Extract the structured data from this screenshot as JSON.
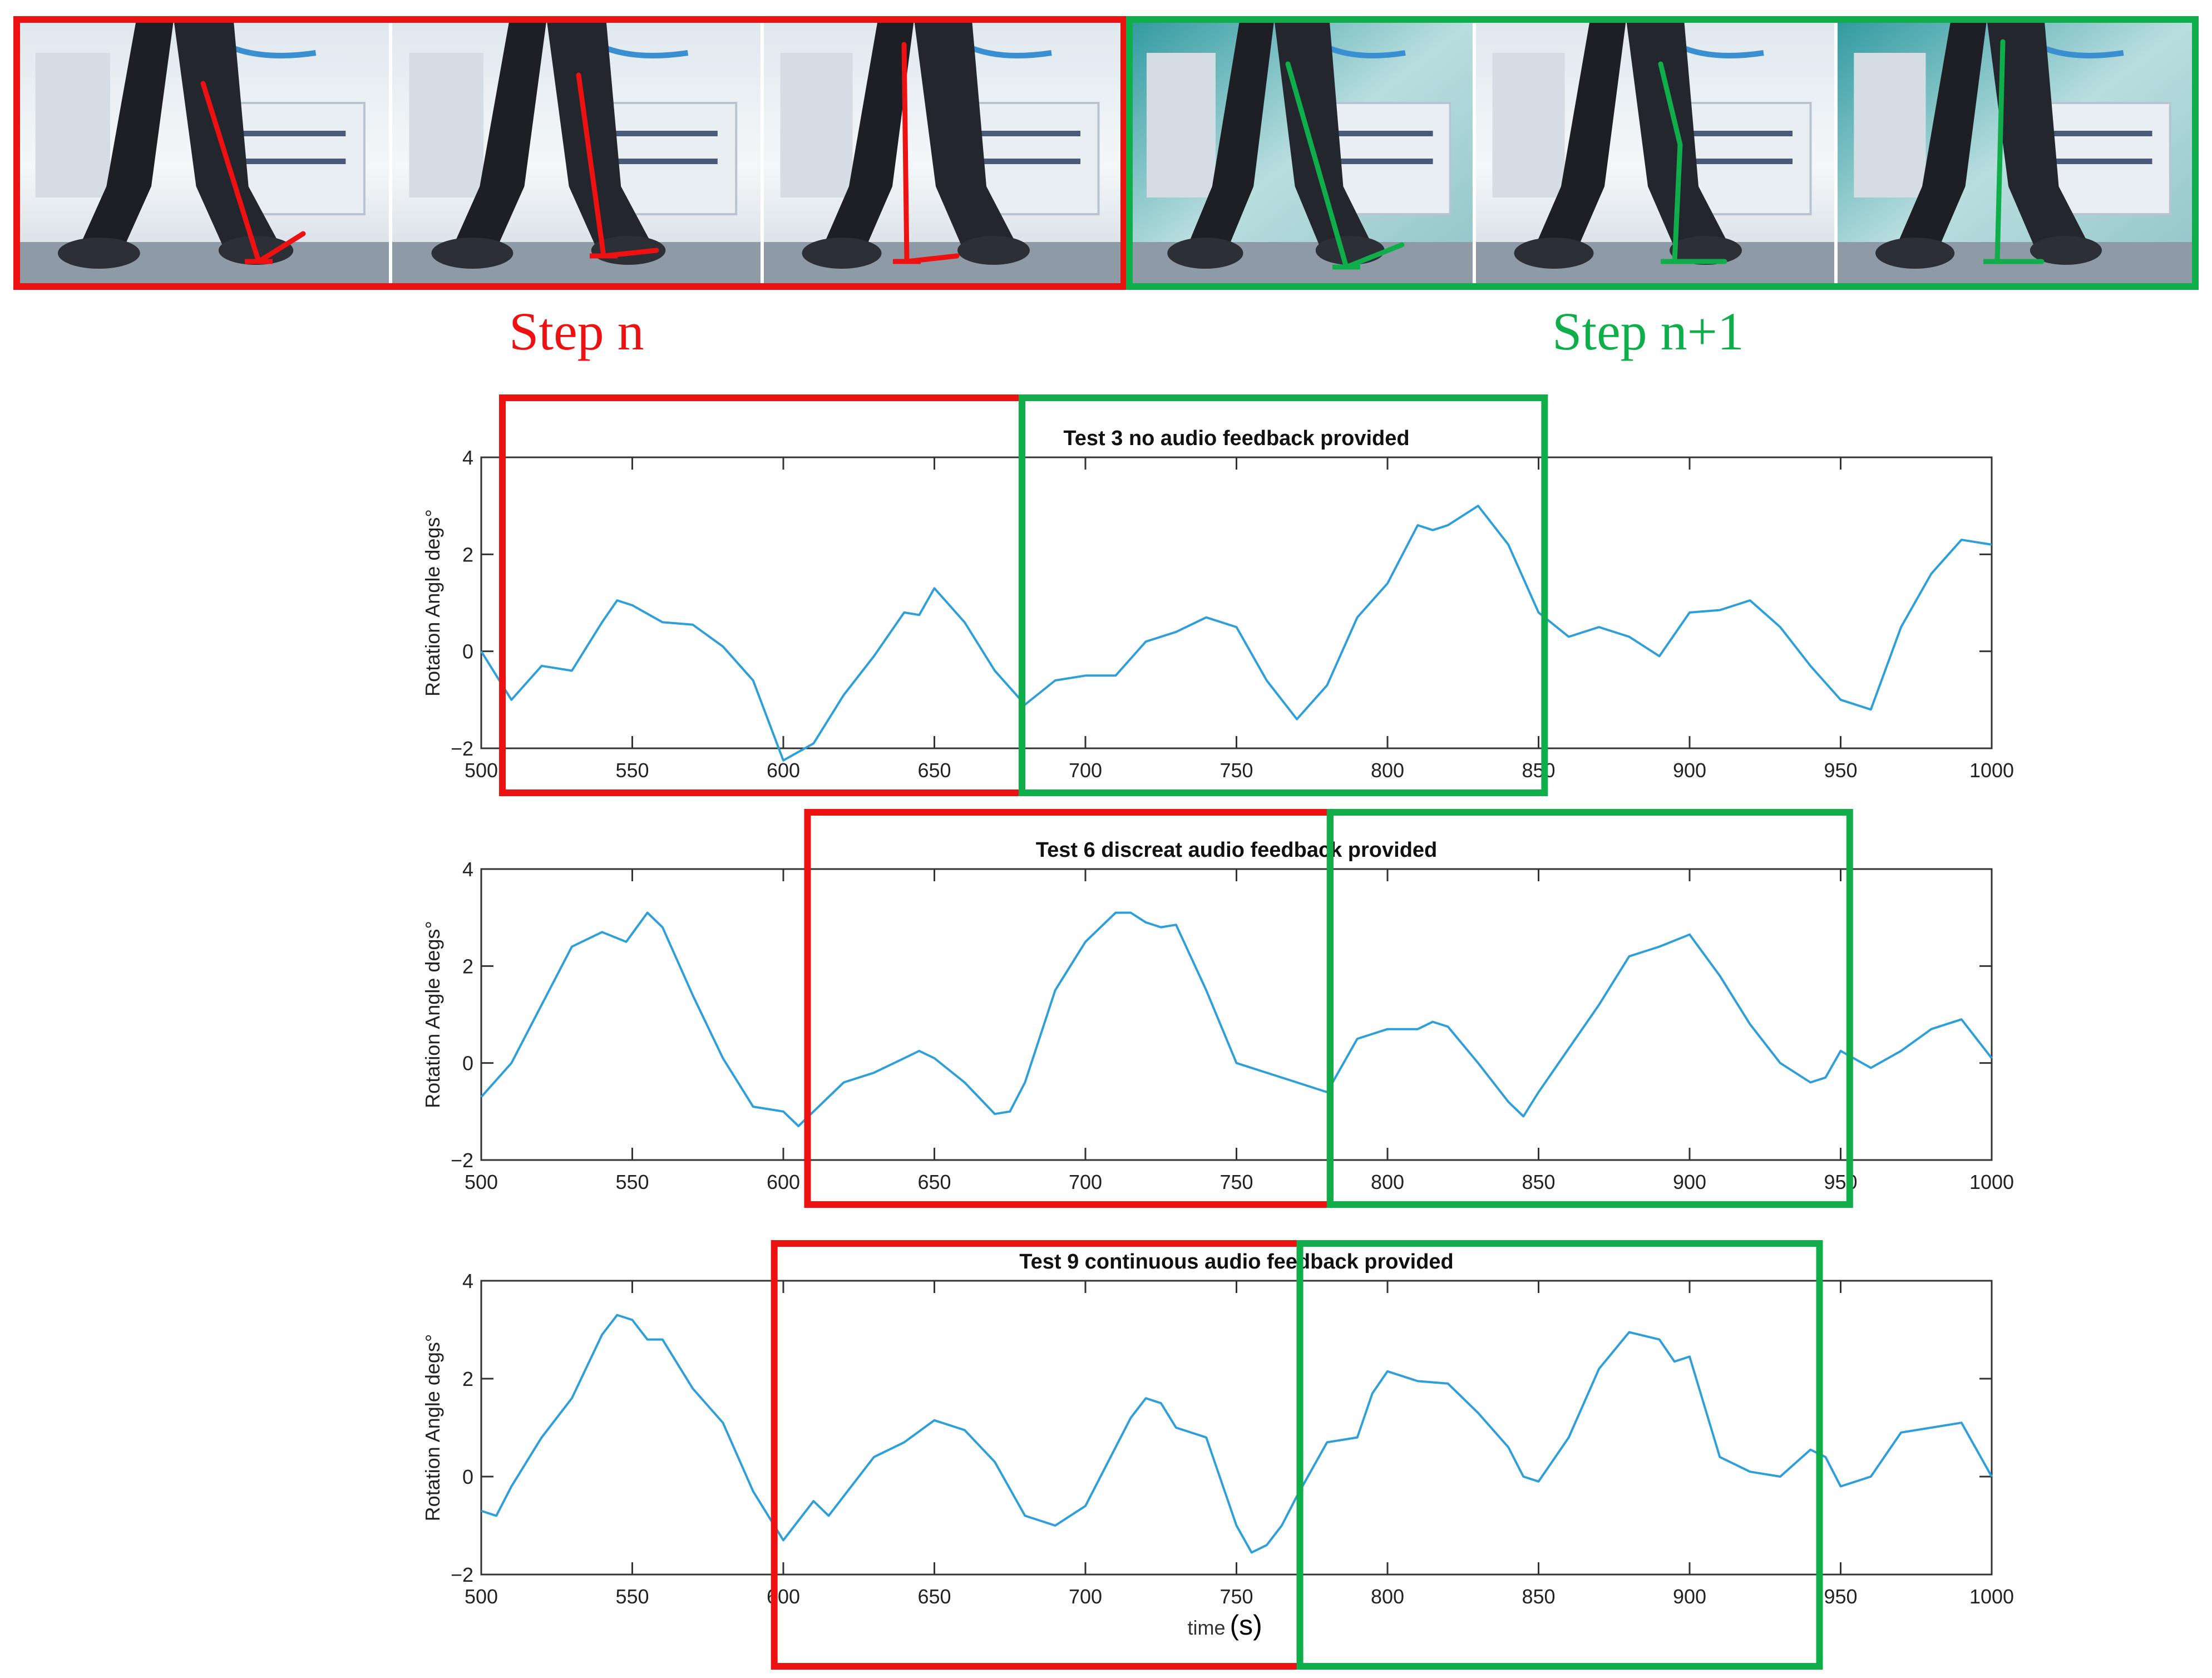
{
  "photo_strip": {
    "frames": [
      {
        "label": "step-n-frame-1",
        "step": "n",
        "leg": [
          [
            365,
            150
          ],
          [
            465,
            470
          ],
          [
            545,
            420
          ]
        ]
      },
      {
        "label": "step-n-frame-2",
        "step": "n",
        "leg": [
          [
            1040,
            135
          ],
          [
            1085,
            460
          ],
          [
            1180,
            450
          ]
        ]
      },
      {
        "label": "step-n-frame-3",
        "step": "n",
        "leg": [
          [
            1625,
            80
          ],
          [
            1630,
            470
          ],
          [
            1720,
            460
          ]
        ]
      },
      {
        "label": "step-n1-frame-1",
        "step": "n1",
        "leg": [
          [
            2315,
            115
          ],
          [
            2420,
            480
          ],
          [
            2520,
            440
          ]
        ]
      },
      {
        "label": "step-n1-frame-2",
        "step": "n1",
        "leg": [
          [
            2985,
            115
          ],
          [
            3020,
            260
          ],
          [
            3010,
            470
          ],
          [
            3100,
            470
          ]
        ]
      },
      {
        "label": "step-n1-frame-3",
        "step": "n1",
        "leg": [
          [
            3600,
            75
          ],
          [
            3590,
            470
          ],
          [
            3670,
            470
          ]
        ]
      }
    ],
    "step_n_color": "#ee1111",
    "step_n1_color": "#0fae4a"
  },
  "labels": {
    "step_n": "Step n",
    "step_n1": "Step n+1"
  },
  "chart_data": [
    {
      "type": "line",
      "title": "Test 3 no audio feedback provided",
      "ylabel": "Rotation Angle degs°",
      "xlim": [
        500,
        1000
      ],
      "ylim": [
        -2,
        4
      ],
      "xticks": [
        500,
        550,
        600,
        650,
        700,
        750,
        800,
        850,
        900,
        950,
        1000
      ],
      "yticks": [
        -2,
        0,
        2,
        4
      ],
      "line_color": "#2e9fd8",
      "series": [
        {
          "x": [
            500,
            510,
            520,
            530,
            540,
            545,
            550,
            560,
            570,
            580,
            590,
            600,
            610,
            620,
            630,
            640,
            645,
            650,
            660,
            670,
            680,
            690,
            700,
            710,
            720,
            730,
            740,
            750,
            760,
            770,
            780,
            790,
            800,
            810,
            815,
            820,
            830,
            840,
            850,
            860,
            870,
            880,
            890,
            900,
            910,
            920,
            930,
            940,
            950,
            960,
            970,
            980,
            990,
            1000
          ],
          "y": [
            0,
            -1.0,
            -0.3,
            -0.4,
            0.6,
            1.05,
            0.95,
            0.6,
            0.55,
            0.1,
            -0.6,
            -2.25,
            -1.9,
            -0.9,
            -0.1,
            0.8,
            0.75,
            1.3,
            0.6,
            -0.4,
            -1.1,
            -0.6,
            -0.5,
            -0.5,
            0.2,
            0.4,
            0.7,
            0.5,
            -0.6,
            -1.4,
            -0.7,
            0.7,
            1.4,
            2.6,
            2.5,
            2.6,
            3.0,
            2.2,
            0.8,
            0.3,
            0.5,
            0.3,
            -0.1,
            0.8,
            0.85,
            1.05,
            0.5,
            -0.3,
            -1.0,
            -1.2,
            0.5,
            1.6,
            2.3,
            2.2
          ]
        }
      ],
      "boxes": [
        {
          "color": "#ee1111",
          "x0": 507,
          "x1": 679
        },
        {
          "color": "#0fae4a",
          "x0": 679,
          "x1": 852
        }
      ]
    },
    {
      "type": "line",
      "title": "Test 6 discreat audio feedback provided",
      "ylabel": "Rotation Angle degs°",
      "xlim": [
        500,
        1000
      ],
      "ylim": [
        -2,
        4
      ],
      "xticks": [
        500,
        550,
        600,
        650,
        700,
        750,
        800,
        850,
        900,
        950,
        1000
      ],
      "yticks": [
        -2,
        0,
        2,
        4
      ],
      "line_color": "#2e9fd8",
      "series": [
        {
          "x": [
            500,
            510,
            520,
            530,
            540,
            548,
            555,
            560,
            570,
            580,
            590,
            600,
            605,
            610,
            620,
            630,
            640,
            645,
            650,
            660,
            670,
            675,
            680,
            690,
            700,
            710,
            715,
            720,
            725,
            730,
            740,
            750,
            760,
            770,
            780,
            790,
            800,
            810,
            815,
            820,
            830,
            840,
            845,
            850,
            860,
            870,
            880,
            890,
            900,
            910,
            920,
            930,
            940,
            945,
            950,
            960,
            970,
            980,
            990,
            1000
          ],
          "y": [
            -0.7,
            0.0,
            1.2,
            2.4,
            2.7,
            2.5,
            3.1,
            2.8,
            1.4,
            0.1,
            -0.9,
            -1.0,
            -1.3,
            -1.0,
            -0.4,
            -0.2,
            0.1,
            0.25,
            0.1,
            -0.4,
            -1.05,
            -1.0,
            -0.4,
            1.5,
            2.5,
            3.1,
            3.1,
            2.9,
            2.8,
            2.85,
            1.5,
            0.0,
            -0.2,
            -0.4,
            -0.6,
            0.5,
            0.7,
            0.7,
            0.85,
            0.75,
            0.0,
            -0.8,
            -1.1,
            -0.6,
            0.3,
            1.2,
            2.2,
            2.4,
            2.65,
            1.8,
            0.8,
            0.0,
            -0.4,
            -0.3,
            0.25,
            -0.1,
            0.25,
            0.7,
            0.9,
            0.1
          ]
        }
      ],
      "boxes": [
        {
          "color": "#ee1111",
          "x0": 608,
          "x1": 781
        },
        {
          "color": "#0fae4a",
          "x0": 781,
          "x1": 953
        }
      ]
    },
    {
      "type": "line",
      "title": "Test 9 continuous audio feedback provided",
      "ylabel": "Rotation Angle degs°",
      "xlabel": "time",
      "xlabel_unit": "(s)",
      "xlim": [
        500,
        1000
      ],
      "ylim": [
        -2,
        4
      ],
      "xticks": [
        500,
        550,
        600,
        650,
        700,
        750,
        800,
        850,
        900,
        950,
        1000
      ],
      "yticks": [
        -2,
        0,
        2,
        4
      ],
      "line_color": "#2e9fd8",
      "series": [
        {
          "x": [
            500,
            505,
            510,
            520,
            530,
            540,
            545,
            550,
            555,
            560,
            570,
            580,
            590,
            600,
            610,
            615,
            620,
            630,
            640,
            650,
            660,
            670,
            680,
            690,
            700,
            710,
            715,
            720,
            725,
            730,
            740,
            750,
            755,
            760,
            765,
            770,
            780,
            790,
            795,
            800,
            810,
            820,
            830,
            840,
            845,
            850,
            860,
            870,
            880,
            890,
            895,
            900,
            910,
            920,
            930,
            940,
            945,
            950,
            960,
            970,
            980,
            990,
            1000
          ],
          "y": [
            -0.7,
            -0.8,
            -0.2,
            0.8,
            1.6,
            2.9,
            3.3,
            3.2,
            2.8,
            2.8,
            1.8,
            1.1,
            -0.3,
            -1.3,
            -0.5,
            -0.8,
            -0.4,
            0.4,
            0.7,
            1.15,
            0.95,
            0.3,
            -0.8,
            -1.0,
            -0.6,
            0.6,
            1.2,
            1.6,
            1.5,
            1.0,
            0.8,
            -1.0,
            -1.55,
            -1.4,
            -1.0,
            -0.4,
            0.7,
            0.8,
            1.7,
            2.15,
            1.95,
            1.9,
            1.3,
            0.6,
            0.0,
            -0.1,
            0.8,
            2.2,
            2.95,
            2.8,
            2.35,
            2.45,
            0.4,
            0.1,
            0.0,
            0.55,
            0.4,
            -0.2,
            0.0,
            0.9,
            1.0,
            1.1,
            0.0
          ]
        }
      ],
      "boxes": [
        {
          "color": "#ee1111",
          "x0": 597,
          "x1": 771
        },
        {
          "color": "#0fae4a",
          "x0": 771,
          "x1": 943
        }
      ]
    }
  ]
}
